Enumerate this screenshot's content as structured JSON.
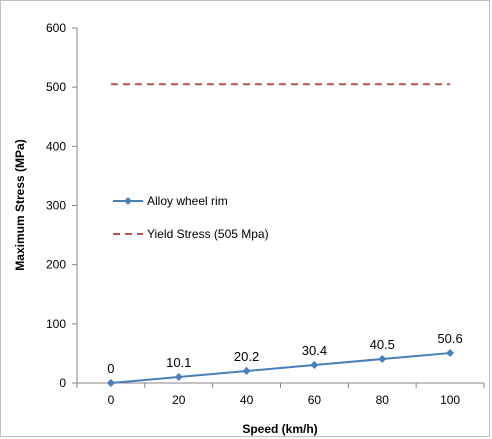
{
  "chart_data": {
    "type": "line",
    "xlabel": "Speed (km/h)",
    "ylabel": "Maximum Stress (MPa)",
    "x": [
      0,
      20,
      40,
      60,
      80,
      100
    ],
    "xticks": [
      "0",
      "20",
      "40",
      "60",
      "80",
      "100"
    ],
    "yticks": [
      "0",
      "100",
      "200",
      "300",
      "400",
      "500",
      "600"
    ],
    "ylim": [
      0,
      600
    ],
    "xlim": [
      -10,
      110
    ],
    "grid": false,
    "legend_position": "left-middle",
    "series": [
      {
        "name": "Alloy wheel rim",
        "values": [
          0,
          10.1,
          20.2,
          30.4,
          40.5,
          50.6
        ],
        "data_labels": [
          "0",
          "10.1",
          "20.2",
          "30.4",
          "40.5",
          "50.6"
        ],
        "color": "#4a7ebb",
        "style": "solid-diamond"
      },
      {
        "name": "Yield Stress (505 Mpa)",
        "values": [
          505,
          505,
          505,
          505,
          505,
          505
        ],
        "color": "#c0504d",
        "style": "dashed"
      }
    ]
  }
}
